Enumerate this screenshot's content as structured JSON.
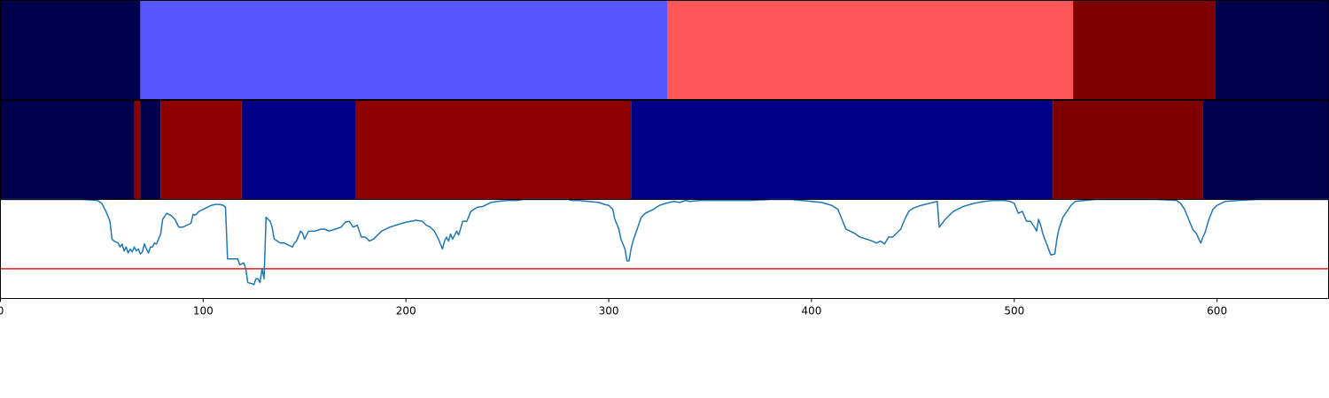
{
  "chart_data": {
    "type": "segmentation-timeline",
    "xlim": [
      0,
      655
    ],
    "x_ticks": [
      0,
      100,
      200,
      300,
      400,
      500,
      600
    ],
    "x_tick_labels": [
      "0",
      "100",
      "200",
      "300",
      "400",
      "500",
      "600"
    ],
    "grid": false,
    "legend": "none",
    "band_rows": [
      {
        "segments": [
          {
            "start": 0,
            "end": 69,
            "color": "#00004c"
          },
          {
            "start": 69,
            "end": 329,
            "color": "#5757ff"
          },
          {
            "start": 329,
            "end": 529,
            "color": "#ff5757"
          },
          {
            "start": 529,
            "end": 599,
            "color": "#7f0000"
          },
          {
            "start": 599,
            "end": 655,
            "color": "#00004c"
          }
        ]
      },
      {
        "segments": [
          {
            "start": 0,
            "end": 66,
            "color": "#00004c"
          },
          {
            "start": 66,
            "end": 69,
            "color": "#8f0000"
          },
          {
            "start": 69,
            "end": 79,
            "color": "#00004c"
          },
          {
            "start": 79,
            "end": 119,
            "color": "#8f0000"
          },
          {
            "start": 119,
            "end": 175,
            "color": "#000086"
          },
          {
            "start": 175,
            "end": 311,
            "color": "#8f0000"
          },
          {
            "start": 311,
            "end": 519,
            "color": "#000086"
          },
          {
            "start": 519,
            "end": 593,
            "color": "#7f0000"
          },
          {
            "start": 593,
            "end": 655,
            "color": "#00004c"
          }
        ]
      }
    ],
    "line_panel": {
      "ylim": [
        0,
        1
      ],
      "threshold": 0.3,
      "line_color": "#1f77b4",
      "threshold_color": "#e8191b",
      "points": [
        [
          0,
          1.0
        ],
        [
          20,
          1.0
        ],
        [
          40,
          1.0
        ],
        [
          48,
          0.99
        ],
        [
          50,
          0.96
        ],
        [
          52,
          0.88
        ],
        [
          54,
          0.78
        ],
        [
          55,
          0.6
        ],
        [
          56,
          0.58
        ],
        [
          58,
          0.56
        ],
        [
          59,
          0.52
        ],
        [
          60,
          0.55
        ],
        [
          61,
          0.48
        ],
        [
          62,
          0.52
        ],
        [
          63,
          0.46
        ],
        [
          64,
          0.5
        ],
        [
          65,
          0.47
        ],
        [
          66,
          0.52
        ],
        [
          67,
          0.48
        ],
        [
          68,
          0.5
        ],
        [
          69,
          0.45
        ],
        [
          70,
          0.47
        ],
        [
          71,
          0.55
        ],
        [
          72,
          0.5
        ],
        [
          73,
          0.46
        ],
        [
          74,
          0.52
        ],
        [
          75,
          0.52
        ],
        [
          76,
          0.56
        ],
        [
          77,
          0.55
        ],
        [
          78,
          0.6
        ],
        [
          79,
          0.65
        ],
        [
          80,
          0.8
        ],
        [
          82,
          0.86
        ],
        [
          84,
          0.84
        ],
        [
          86,
          0.8
        ],
        [
          88,
          0.72
        ],
        [
          90,
          0.72
        ],
        [
          92,
          0.74
        ],
        [
          94,
          0.76
        ],
        [
          95,
          0.85
        ],
        [
          96,
          0.84
        ],
        [
          98,
          0.88
        ],
        [
          100,
          0.9
        ],
        [
          104,
          0.94
        ],
        [
          106,
          0.95
        ],
        [
          108,
          0.95
        ],
        [
          110,
          0.94
        ],
        [
          111,
          0.92
        ],
        [
          112,
          0.4
        ],
        [
          115,
          0.4
        ],
        [
          117,
          0.4
        ],
        [
          118,
          0.34
        ],
        [
          120,
          0.36
        ],
        [
          121,
          0.3
        ],
        [
          122,
          0.16
        ],
        [
          124,
          0.15
        ],
        [
          125,
          0.14
        ],
        [
          126,
          0.2
        ],
        [
          127,
          0.2
        ],
        [
          128,
          0.16
        ],
        [
          129,
          0.3
        ],
        [
          130,
          0.2
        ],
        [
          131,
          0.82
        ],
        [
          133,
          0.78
        ],
        [
          134,
          0.72
        ],
        [
          135,
          0.6
        ],
        [
          138,
          0.56
        ],
        [
          140,
          0.56
        ],
        [
          142,
          0.54
        ],
        [
          144,
          0.52
        ],
        [
          145,
          0.56
        ],
        [
          146,
          0.58
        ],
        [
          148,
          0.68
        ],
        [
          149,
          0.66
        ],
        [
          150,
          0.6
        ],
        [
          152,
          0.68
        ],
        [
          155,
          0.68
        ],
        [
          158,
          0.7
        ],
        [
          160,
          0.7
        ],
        [
          162,
          0.68
        ],
        [
          165,
          0.7
        ],
        [
          168,
          0.72
        ],
        [
          170,
          0.77
        ],
        [
          172,
          0.78
        ],
        [
          174,
          0.72
        ],
        [
          176,
          0.74
        ],
        [
          178,
          0.62
        ],
        [
          180,
          0.62
        ],
        [
          182,
          0.58
        ],
        [
          184,
          0.6
        ],
        [
          186,
          0.64
        ],
        [
          188,
          0.68
        ],
        [
          190,
          0.7
        ],
        [
          192,
          0.72
        ],
        [
          195,
          0.74
        ],
        [
          200,
          0.77
        ],
        [
          205,
          0.79
        ],
        [
          208,
          0.78
        ],
        [
          210,
          0.74
        ],
        [
          212,
          0.72
        ],
        [
          214,
          0.68
        ],
        [
          215,
          0.64
        ],
        [
          216,
          0.6
        ],
        [
          217,
          0.55
        ],
        [
          218,
          0.5
        ],
        [
          219,
          0.58
        ],
        [
          220,
          0.62
        ],
        [
          221,
          0.58
        ],
        [
          222,
          0.65
        ],
        [
          223,
          0.6
        ],
        [
          225,
          0.68
        ],
        [
          226,
          0.64
        ],
        [
          228,
          0.78
        ],
        [
          230,
          0.78
        ],
        [
          232,
          0.88
        ],
        [
          235,
          0.92
        ],
        [
          238,
          0.93
        ],
        [
          242,
          0.97
        ],
        [
          245,
          0.98
        ],
        [
          250,
          0.99
        ],
        [
          255,
          0.99
        ],
        [
          258,
          1.0
        ],
        [
          270,
          1.0
        ],
        [
          280,
          1.0
        ],
        [
          282,
          0.99
        ],
        [
          285,
          0.99
        ],
        [
          290,
          0.98
        ],
        [
          295,
          0.97
        ],
        [
          298,
          0.95
        ],
        [
          300,
          0.94
        ],
        [
          302,
          0.9
        ],
        [
          303,
          0.8
        ],
        [
          305,
          0.7
        ],
        [
          306,
          0.6
        ],
        [
          308,
          0.5
        ],
        [
          309,
          0.38
        ],
        [
          310,
          0.38
        ],
        [
          311,
          0.5
        ],
        [
          312,
          0.58
        ],
        [
          314,
          0.7
        ],
        [
          316,
          0.82
        ],
        [
          318,
          0.86
        ],
        [
          320,
          0.88
        ],
        [
          322,
          0.9
        ],
        [
          325,
          0.94
        ],
        [
          328,
          0.96
        ],
        [
          332,
          0.98
        ],
        [
          335,
          0.97
        ],
        [
          338,
          0.99
        ],
        [
          340,
          0.98
        ],
        [
          345,
          0.99
        ],
        [
          350,
          0.99
        ],
        [
          360,
          0.99
        ],
        [
          370,
          0.99
        ],
        [
          380,
          1.0
        ],
        [
          390,
          1.0
        ],
        [
          400,
          0.98
        ],
        [
          405,
          0.97
        ],
        [
          410,
          0.94
        ],
        [
          413,
          0.9
        ],
        [
          415,
          0.8
        ],
        [
          417,
          0.7
        ],
        [
          419,
          0.68
        ],
        [
          421,
          0.66
        ],
        [
          424,
          0.62
        ],
        [
          427,
          0.6
        ],
        [
          430,
          0.58
        ],
        [
          432,
          0.56
        ],
        [
          434,
          0.58
        ],
        [
          436,
          0.55
        ],
        [
          438,
          0.62
        ],
        [
          440,
          0.62
        ],
        [
          442,
          0.66
        ],
        [
          444,
          0.7
        ],
        [
          446,
          0.8
        ],
        [
          448,
          0.88
        ],
        [
          450,
          0.91
        ],
        [
          454,
          0.94
        ],
        [
          458,
          0.96
        ],
        [
          460,
          0.97
        ],
        [
          462,
          0.98
        ],
        [
          463,
          0.72
        ],
        [
          466,
          0.8
        ],
        [
          470,
          0.88
        ],
        [
          475,
          0.93
        ],
        [
          480,
          0.96
        ],
        [
          485,
          0.98
        ],
        [
          490,
          0.99
        ],
        [
          495,
          0.99
        ],
        [
          498,
          0.98
        ],
        [
          500,
          0.96
        ],
        [
          502,
          0.86
        ],
        [
          504,
          0.88
        ],
        [
          506,
          0.78
        ],
        [
          508,
          0.78
        ],
        [
          510,
          0.72
        ],
        [
          511,
          0.68
        ],
        [
          512,
          0.8
        ],
        [
          513,
          0.74
        ],
        [
          514,
          0.66
        ],
        [
          515,
          0.6
        ],
        [
          516,
          0.55
        ],
        [
          518,
          0.44
        ],
        [
          520,
          0.45
        ],
        [
          521,
          0.6
        ],
        [
          522,
          0.7
        ],
        [
          524,
          0.82
        ],
        [
          526,
          0.88
        ],
        [
          528,
          0.94
        ],
        [
          530,
          0.98
        ],
        [
          535,
          0.99
        ],
        [
          540,
          1.0
        ],
        [
          550,
          1.0
        ],
        [
          560,
          1.0
        ],
        [
          570,
          1.0
        ],
        [
          580,
          0.99
        ],
        [
          582,
          0.96
        ],
        [
          584,
          0.9
        ],
        [
          586,
          0.8
        ],
        [
          588,
          0.7
        ],
        [
          590,
          0.65
        ],
        [
          591,
          0.6
        ],
        [
          592,
          0.56
        ],
        [
          593,
          0.62
        ],
        [
          594,
          0.66
        ],
        [
          596,
          0.8
        ],
        [
          598,
          0.9
        ],
        [
          600,
          0.94
        ],
        [
          604,
          0.98
        ],
        [
          610,
          0.99
        ],
        [
          620,
          1.0
        ],
        [
          640,
          1.0
        ],
        [
          655,
          1.0
        ]
      ]
    }
  }
}
